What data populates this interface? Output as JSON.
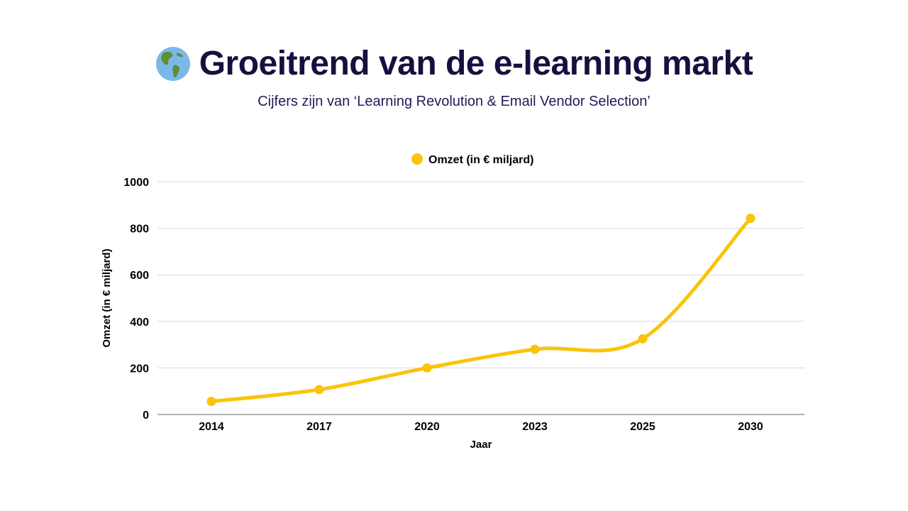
{
  "header": {
    "title": "Groeitrend van de e-learning markt",
    "subtitle": "Cijfers zijn van ‘Learning Revolution & Email Vendor Selection’",
    "icon": "globe-americas-icon"
  },
  "colors": {
    "title": "#14113f",
    "series": "#fbc30a",
    "grid": "#d9d9d9",
    "axis": "#999999"
  },
  "chart_data": {
    "type": "line",
    "categories": [
      "2014",
      "2017",
      "2020",
      "2023",
      "2025",
      "2030"
    ],
    "series": [
      {
        "name": "Omzet (in € miljard)",
        "values": [
          56,
          107,
          200,
          280,
          325,
          843
        ]
      }
    ],
    "xlabel": "Jaar",
    "ylabel": "Omzet (in € miljard)",
    "ylim": [
      0,
      1000
    ],
    "yticks": [
      0,
      200,
      400,
      600,
      800,
      1000
    ],
    "grid": true,
    "legend": "top-center"
  }
}
